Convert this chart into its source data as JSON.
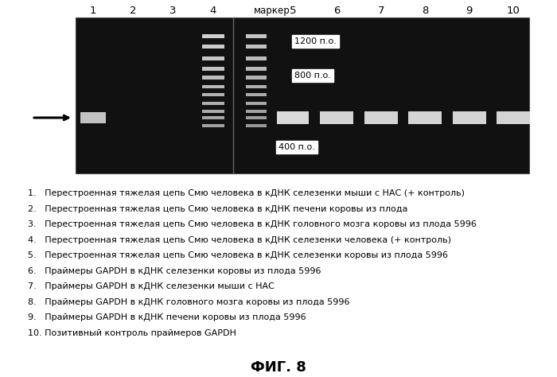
{
  "title": "ФИГ. 8",
  "title_fontsize": 13,
  "background_color": "#ffffff",
  "gel_bg": "#111111",
  "legend_items": [
    "1.   Перестроенная тяжелая цепь Смю человека в кДНК селезенки мыши с НАС (+ контроль)",
    "2.   Перестроенная тяжелая цепь Смю человека в кДНК печени коровы из плода",
    "3.   Перестроенная тяжелая цепь Смю человека в кДНК головного мозга коровы из плода 5996",
    "4.   Перестроенная тяжелая цепь Смю человека в кДНК селезенки человека (+ контроль)",
    "5.   Перестроенная тяжелая цепь Смю человека в кДНК селезенки коровы из плода 5996",
    "6.   Праймеры GAPDH в кДНК селезенки коровы из плода 5996",
    "7.   Праймеры GAPDH в кДНК селезенки мыши с НАС",
    "8.   Праймеры GAPDH в кДНК головного мозга коровы из плода 5996",
    "9.   Праймеры GAPDH в кДНК печени коровы из плода 5996",
    "10. Позитивный контроль праймеров GAPDH"
  ],
  "size_labels": [
    "1200 п.о.",
    "800 п.о.",
    "400 п.о."
  ],
  "legend_fontsize": 8.0,
  "lane_label_fontsize": 9.5
}
